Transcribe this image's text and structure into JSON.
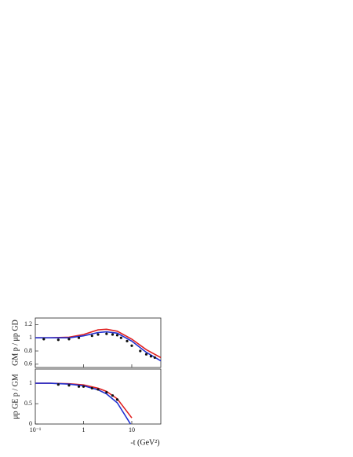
{
  "chart_data": [
    {
      "type": "line",
      "log_x": true,
      "ylabel": "GM p / μp GD",
      "x": [
        0.1,
        0.2,
        0.5,
        1,
        2,
        3,
        5,
        10,
        20,
        40
      ],
      "series": [
        {
          "color": "#e02020",
          "values": [
            1.0,
            1.0,
            1.01,
            1.05,
            1.12,
            1.13,
            1.1,
            0.98,
            0.82,
            0.7
          ]
        },
        {
          "color": "#2030d0",
          "values": [
            1.0,
            1.0,
            1.0,
            1.03,
            1.08,
            1.09,
            1.07,
            0.95,
            0.78,
            0.65
          ]
        }
      ],
      "points": {
        "color": "#111111",
        "x": [
          0.15,
          0.3,
          0.5,
          0.8,
          1.5,
          2,
          3,
          4,
          5,
          6,
          8,
          10,
          15,
          20,
          25,
          30
        ],
        "values": [
          0.98,
          0.97,
          0.98,
          1.0,
          1.03,
          1.05,
          1.06,
          1.05,
          1.04,
          1.0,
          0.95,
          0.88,
          0.8,
          0.75,
          0.72,
          0.7
        ]
      },
      "xlim": [
        0.1,
        40
      ],
      "xticks": [
        0.1,
        1,
        10
      ],
      "ylim": [
        0.55,
        1.3
      ],
      "yticks": [
        0.6,
        0.8,
        1,
        1.2
      ]
    },
    {
      "type": "line",
      "log_x": true,
      "ylabel": "μp GE p / GM",
      "xlabel": "-t (GeV²)",
      "x": [
        0.1,
        0.2,
        0.5,
        1,
        2,
        3,
        5,
        10,
        20,
        40
      ],
      "series": [
        {
          "color": "#e02020",
          "values": [
            1.0,
            1.0,
            0.99,
            0.96,
            0.88,
            0.8,
            0.62,
            0.15,
            null,
            null
          ]
        },
        {
          "color": "#2030d0",
          "values": [
            1.0,
            1.0,
            0.98,
            0.94,
            0.84,
            0.74,
            0.52,
            -0.05,
            null,
            null
          ]
        }
      ],
      "points": {
        "color": "#111111",
        "x": [
          0.3,
          0.5,
          0.8,
          1,
          1.5,
          2,
          3,
          4,
          5
        ],
        "values": [
          0.97,
          0.95,
          0.92,
          0.92,
          0.88,
          0.85,
          0.78,
          0.7,
          0.6
        ]
      },
      "xlim": [
        0.1,
        40
      ],
      "xticks": [
        {
          "value": 0.1,
          "label": "10⁻¹"
        },
        1,
        10
      ],
      "ylim": [
        0,
        1.35
      ],
      "yticks": [
        0,
        0.5,
        1
      ]
    }
  ]
}
